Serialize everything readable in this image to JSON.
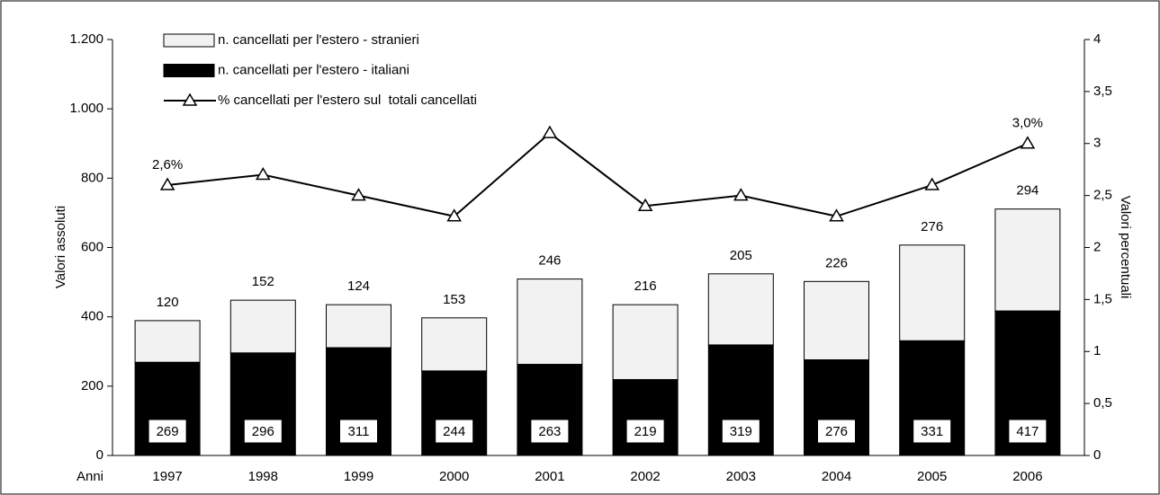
{
  "chart_data": {
    "type": "bar",
    "categories": [
      "1997",
      "1998",
      "1999",
      "2000",
      "2001",
      "2002",
      "2003",
      "2004",
      "2005",
      "2006"
    ],
    "xlabel": "Anni",
    "ylabel": "Valori assoluti",
    "y2label": "Valori percentuali",
    "series": [
      {
        "name": "n. cancellati per l'estero - stranieri",
        "type": "bar",
        "color": "#f2f2f2",
        "values": [
          120,
          152,
          124,
          153,
          246,
          216,
          205,
          226,
          276,
          294
        ]
      },
      {
        "name": "n. cancellati per l'estero - italiani",
        "type": "bar",
        "color": "#000000",
        "values": [
          269,
          296,
          311,
          244,
          263,
          219,
          319,
          276,
          331,
          417
        ]
      },
      {
        "name": "% cancellati per l'estero sul  totali cancellati",
        "type": "line",
        "axis": "y2",
        "color": "#000000",
        "values": [
          2.6,
          2.7,
          2.5,
          2.3,
          3.1,
          2.4,
          2.5,
          2.3,
          2.6,
          3.0
        ],
        "value_labels": [
          "2,6%",
          null,
          null,
          null,
          null,
          null,
          null,
          null,
          null,
          "3,0%"
        ]
      }
    ],
    "ylim": [
      0,
      1200
    ],
    "yticks": [
      0,
      200,
      400,
      600,
      800,
      {
        "value": 1000,
        "label": "1.000"
      },
      {
        "value": 1200,
        "label": "1.200"
      }
    ],
    "y2lim": [
      0,
      4
    ],
    "y2ticks": [
      0,
      {
        "value": 0.5,
        "label": "0,5"
      },
      1,
      {
        "value": 1.5,
        "label": "1,5"
      },
      2,
      {
        "value": 2.5,
        "label": "2,5"
      },
      3,
      {
        "value": 3.5,
        "label": "3,5"
      },
      4
    ],
    "legend": "top-left"
  }
}
